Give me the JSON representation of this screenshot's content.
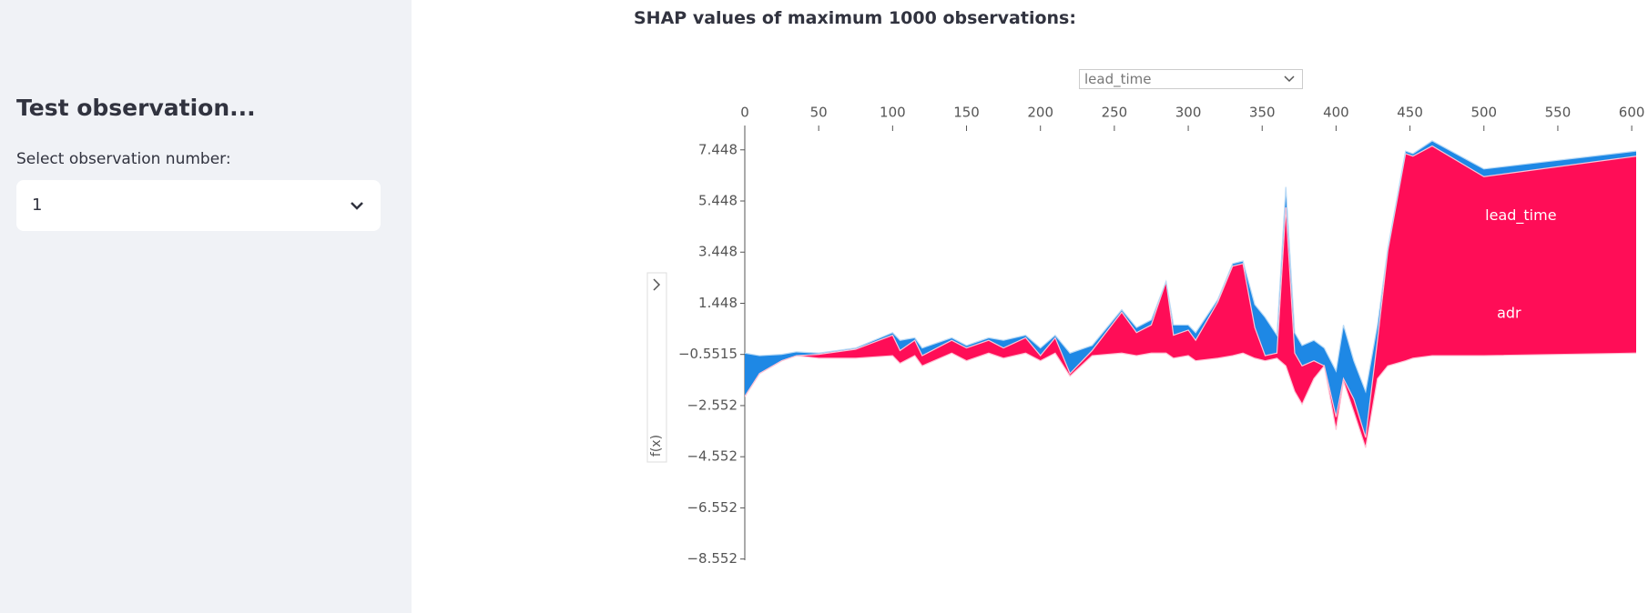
{
  "sidebar": {
    "title": "Test observation...",
    "select_label": "Select observation number:",
    "select_value": "1"
  },
  "main": {
    "title": "SHAP values of maximum 1000 observations:"
  },
  "chart_data": {
    "type": "area",
    "x_selector": "lead_time",
    "ylabel": "f(x)",
    "x": [
      0,
      10,
      25,
      35,
      50,
      75,
      100,
      105,
      115,
      120,
      140,
      150,
      165,
      175,
      190,
      200,
      210,
      220,
      235,
      255,
      265,
      275,
      285,
      290,
      300,
      305,
      320,
      330,
      337,
      345,
      352,
      360,
      366,
      372,
      377,
      385,
      392,
      400,
      405,
      412,
      420,
      428,
      435,
      447,
      452,
      465,
      500,
      603
    ],
    "series": [
      {
        "color": "#ffc3d5",
        "values": [
          -2.2,
          -1.3,
          -0.8,
          -0.6,
          -0.7,
          -0.7,
          -0.6,
          -0.9,
          -0.6,
          -1.0,
          -0.5,
          -0.8,
          -0.5,
          -0.7,
          -0.5,
          -0.8,
          -0.5,
          -1.4,
          -0.6,
          -0.5,
          -0.6,
          -0.5,
          -0.5,
          -0.7,
          -0.6,
          -0.8,
          -0.7,
          -0.6,
          -0.5,
          -0.7,
          -0.8,
          -0.7,
          -1.0,
          -2.0,
          -2.5,
          -1.5,
          -1.0,
          -3.5,
          -1.6,
          -2.8,
          -4.2,
          -1.5,
          -1.0,
          -0.8,
          -0.7,
          -0.6,
          -0.6,
          -0.5
        ]
      },
      {
        "color": "#ff0d57",
        "values": [
          -2.2,
          -1.3,
          -0.8,
          -0.6,
          -0.55,
          -0.35,
          0.2,
          -0.4,
          0.0,
          -0.6,
          0.0,
          -0.3,
          0.0,
          -0.3,
          0.1,
          -0.6,
          0.1,
          -1.3,
          -0.4,
          1.1,
          0.3,
          0.6,
          2.3,
          0.2,
          0.4,
          0.0,
          1.5,
          2.9,
          3.0,
          0.5,
          -0.6,
          -0.5,
          5.2,
          -0.5,
          -1.0,
          -0.8,
          -1.0,
          -3.0,
          -1.5,
          -2.3,
          -3.8,
          0.0,
          3.5,
          7.3,
          7.2,
          7.6,
          6.4,
          7.2
        ]
      },
      {
        "color": "#1e88e5",
        "values": [
          -0.5,
          -0.6,
          -0.55,
          -0.45,
          -0.5,
          -0.3,
          0.3,
          0.0,
          0.1,
          -0.3,
          0.1,
          -0.2,
          0.1,
          0.0,
          0.2,
          -0.3,
          0.2,
          -0.5,
          -0.2,
          1.2,
          0.5,
          0.8,
          2.3,
          0.6,
          0.6,
          0.3,
          1.6,
          3.0,
          3.1,
          1.4,
          0.9,
          0.2,
          6.0,
          0.3,
          -0.2,
          0.0,
          -0.3,
          -1.2,
          0.6,
          -0.8,
          -2.0,
          0.6,
          3.6,
          7.4,
          7.3,
          7.8,
          6.7,
          7.4
        ]
      }
    ],
    "annotations": [
      {
        "text": "lead_time",
        "x": 525,
        "y": 4.86
      },
      {
        "text": "adr",
        "x": 517,
        "y": 1.03
      }
    ],
    "xlim": [
      0,
      603
    ],
    "ylim": [
      -8.6,
      8.4
    ],
    "xticks": [
      0,
      50,
      100,
      150,
      200,
      250,
      300,
      350,
      400,
      450,
      500,
      550,
      600
    ],
    "yticks": [
      7.448,
      5.448,
      3.448,
      1.448,
      {
        "value": -0.5515,
        "label": "−0.5515"
      },
      {
        "value": -2.552,
        "label": "−2.552"
      },
      {
        "value": -4.552,
        "label": "−4.552"
      },
      {
        "value": -6.552,
        "label": "−6.552"
      },
      {
        "value": -8.552,
        "label": "−8.552"
      }
    ]
  }
}
